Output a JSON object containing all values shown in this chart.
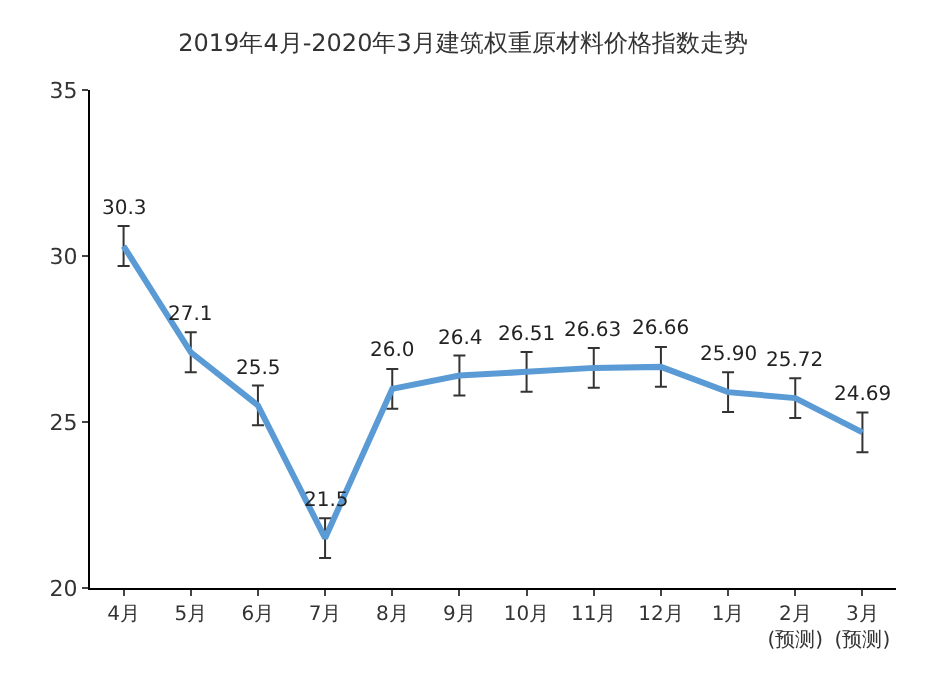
{
  "chart_data": {
    "type": "line",
    "title": "2019年4月-2020年3月建筑权重原材料价格指数走势",
    "categories": [
      "4月",
      "5月",
      "6月",
      "7月",
      "8月",
      "9月",
      "10月",
      "11月",
      "12月",
      "1月",
      "2月\n(预测)",
      "3月\n(预测)"
    ],
    "series": [
      {
        "color": "#5b9bd5",
        "values": [
          30.3,
          27.1,
          25.5,
          21.5,
          26.0,
          26.4,
          26.51,
          26.63,
          26.66,
          25.9,
          25.72,
          24.69
        ],
        "value_labels": [
          "30.3",
          "27.1",
          "25.5",
          "21.5",
          "26.0",
          "26.4",
          "26.51",
          "26.63",
          "26.66",
          "25.90",
          "25.72",
          "24.69"
        ],
        "errors": [
          0.6,
          0.6,
          0.6,
          0.6,
          0.6,
          0.6,
          0.6,
          0.6,
          0.6,
          0.6,
          0.6,
          0.6
        ]
      }
    ],
    "ylim": [
      20,
      35
    ],
    "yticks": [
      20,
      25,
      30,
      35
    ],
    "legend": false,
    "marker": "none",
    "line_style": "solid"
  }
}
